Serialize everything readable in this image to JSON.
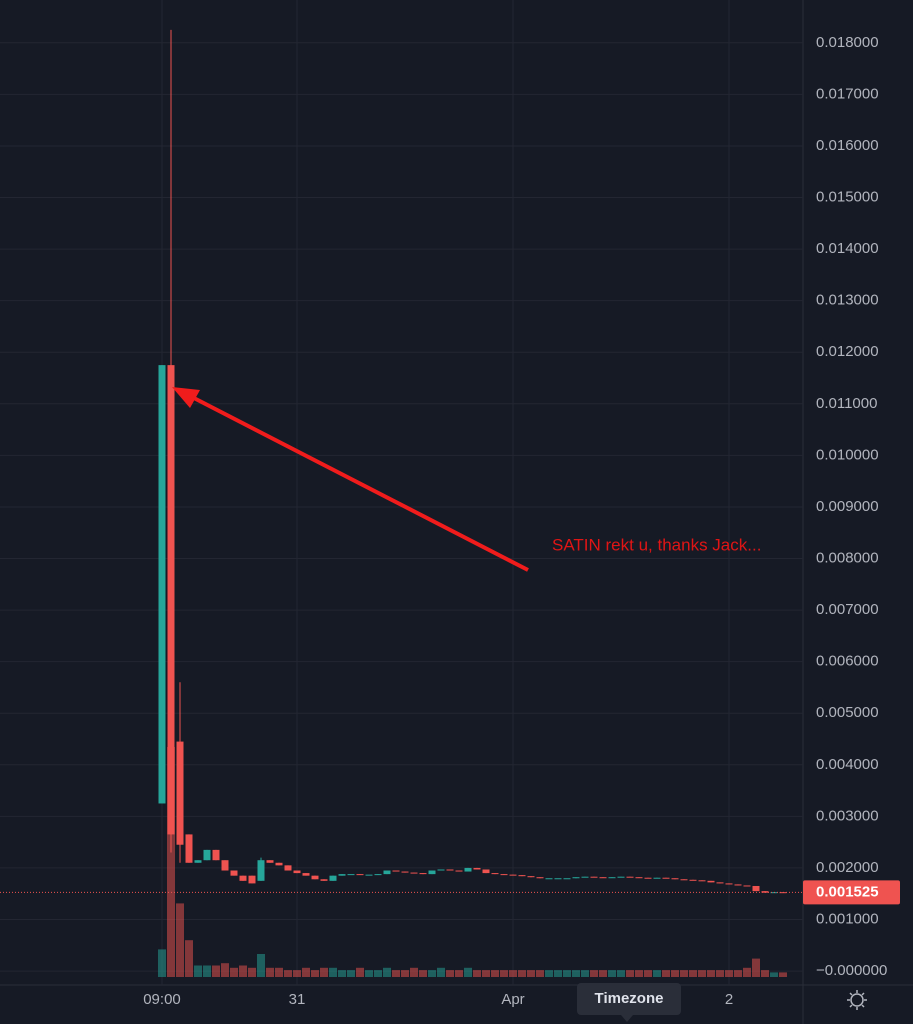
{
  "chart_data": {
    "type": "candlestick",
    "categories": [
      "09:00",
      null,
      null,
      null,
      null,
      null,
      null,
      null,
      null,
      null,
      null,
      null,
      null,
      null,
      null,
      "31",
      null,
      null,
      null,
      null,
      null,
      null,
      null,
      null,
      null,
      null,
      null,
      null,
      null,
      null,
      null,
      null,
      null,
      null,
      null,
      null,
      null,
      null,
      null,
      "Apr",
      null,
      null,
      null,
      null,
      null,
      null,
      null,
      null,
      null,
      null,
      null,
      null,
      null,
      null,
      null,
      null,
      null,
      null,
      null,
      null,
      null,
      null,
      null,
      "2",
      null,
      null,
      null,
      null,
      null,
      null
    ],
    "open": [
      0.00325,
      0.01175,
      0.00445,
      0.00265,
      0.0021,
      0.00215,
      0.00235,
      0.00215,
      0.00195,
      0.00185,
      0.00185,
      0.00175,
      0.00215,
      0.0021,
      0.00205,
      0.00195,
      0.0019,
      0.00185,
      0.00178,
      0.00175,
      0.00185,
      0.00188,
      0.00188,
      0.00187,
      0.00187,
      0.00188,
      0.00195,
      0.00193,
      0.00191,
      0.0019,
      0.00188,
      0.00195,
      0.00197,
      0.00195,
      0.00193,
      0.002,
      0.00197,
      0.0019,
      0.00188,
      0.00187,
      0.00186,
      0.00184,
      0.00182,
      0.0018,
      0.0018,
      0.0018,
      0.0018,
      0.00182,
      0.00183,
      0.00182,
      0.00181,
      0.00182,
      0.00183,
      0.00182,
      0.00181,
      0.0018,
      0.00181,
      0.0018,
      0.00178,
      0.00177,
      0.00176,
      0.00175,
      0.00172,
      0.0017,
      0.00168,
      0.00166,
      0.00165,
      0.00155,
      0.00152,
      0.00153
    ],
    "high": [
      0.01175,
      0.01825,
      0.0056,
      0.00265,
      0.00215,
      0.00235,
      0.00235,
      0.00215,
      0.00195,
      0.00185,
      0.00185,
      0.0022,
      0.00215,
      0.0021,
      0.00205,
      0.00195,
      0.0019,
      0.00185,
      0.00178,
      0.00185,
      0.00188,
      0.00188,
      0.00188,
      0.00187,
      0.00188,
      0.00195,
      0.00195,
      0.00193,
      0.00191,
      0.0019,
      0.00195,
      0.00197,
      0.00197,
      0.00195,
      0.002,
      0.002,
      0.00197,
      0.0019,
      0.00188,
      0.00187,
      0.00186,
      0.00184,
      0.00182,
      0.0018,
      0.0018,
      0.0018,
      0.00182,
      0.00183,
      0.00183,
      0.00182,
      0.00182,
      0.00183,
      0.00183,
      0.00182,
      0.00181,
      0.00181,
      0.00181,
      0.0018,
      0.00178,
      0.00177,
      0.00176,
      0.00175,
      0.00172,
      0.0017,
      0.00168,
      0.00166,
      0.00165,
      0.00155,
      0.00153,
      0.00153
    ],
    "low": [
      0.00325,
      0.0023,
      0.0021,
      0.0021,
      0.0021,
      0.00215,
      0.00215,
      0.00195,
      0.00185,
      0.00175,
      0.0017,
      0.00175,
      0.0021,
      0.00205,
      0.00195,
      0.0019,
      0.00185,
      0.00178,
      0.00175,
      0.00175,
      0.00185,
      0.00188,
      0.00187,
      0.00187,
      0.00187,
      0.00188,
      0.00193,
      0.00191,
      0.0019,
      0.00188,
      0.00188,
      0.00195,
      0.00195,
      0.00193,
      0.00193,
      0.00197,
      0.0019,
      0.00188,
      0.00187,
      0.00186,
      0.00184,
      0.00182,
      0.0018,
      0.0018,
      0.0018,
      0.0018,
      0.0018,
      0.00182,
      0.00182,
      0.00181,
      0.00181,
      0.00182,
      0.00182,
      0.00181,
      0.0018,
      0.0018,
      0.0018,
      0.00178,
      0.00177,
      0.00176,
      0.00175,
      0.00172,
      0.0017,
      0.00168,
      0.00166,
      0.00165,
      0.00155,
      0.00152,
      0.00152,
      0.001525
    ],
    "close": [
      0.01175,
      0.00265,
      0.00245,
      0.0021,
      0.00215,
      0.00235,
      0.00215,
      0.00195,
      0.00185,
      0.00175,
      0.0017,
      0.00215,
      0.0021,
      0.00205,
      0.00195,
      0.0019,
      0.00185,
      0.00178,
      0.00175,
      0.00185,
      0.00188,
      0.00188,
      0.00187,
      0.00187,
      0.00188,
      0.00195,
      0.00193,
      0.00191,
      0.0019,
      0.00188,
      0.00195,
      0.00197,
      0.00195,
      0.00193,
      0.002,
      0.00197,
      0.0019,
      0.00188,
      0.00187,
      0.00186,
      0.00184,
      0.00182,
      0.0018,
      0.0018,
      0.0018,
      0.0018,
      0.00182,
      0.00183,
      0.00182,
      0.00181,
      0.00182,
      0.00183,
      0.00182,
      0.00181,
      0.0018,
      0.00181,
      0.0018,
      0.00178,
      0.00177,
      0.00176,
      0.00175,
      0.00172,
      0.0017,
      0.00168,
      0.00166,
      0.00165,
      0.00155,
      0.00152,
      0.00153,
      0.001525
    ],
    "volume": [
      12,
      100,
      32,
      16,
      5,
      5,
      5,
      6,
      4,
      5,
      4,
      10,
      4,
      4,
      3,
      3,
      4,
      3,
      4,
      4,
      3,
      3,
      4,
      3,
      3,
      4,
      3,
      3,
      4,
      3,
      3,
      4,
      3,
      3,
      4,
      3,
      3,
      3,
      3,
      3,
      3,
      3,
      3,
      3,
      3,
      3,
      3,
      3,
      3,
      3,
      3,
      3,
      3,
      3,
      3,
      3,
      3,
      3,
      3,
      3,
      3,
      3,
      3,
      3,
      3,
      4,
      8,
      3,
      2,
      2
    ],
    "volume_ylim": [
      0,
      100
    ],
    "up_color": "#26a69a",
    "down_color": "#ef5350",
    "ylim": [
      -0.00027,
      0.01883
    ],
    "yticks": [
      {
        "value": 0.018,
        "label": "0.018000"
      },
      {
        "value": 0.017,
        "label": "0.017000"
      },
      {
        "value": 0.016,
        "label": "0.016000"
      },
      {
        "value": 0.015,
        "label": "0.015000"
      },
      {
        "value": 0.014,
        "label": "0.014000"
      },
      {
        "value": 0.013,
        "label": "0.013000"
      },
      {
        "value": 0.012,
        "label": "0.012000"
      },
      {
        "value": 0.011,
        "label": "0.011000"
      },
      {
        "value": 0.01,
        "label": "0.010000"
      },
      {
        "value": 0.009,
        "label": "0.009000"
      },
      {
        "value": 0.008,
        "label": "0.008000"
      },
      {
        "value": 0.007,
        "label": "0.007000"
      },
      {
        "value": 0.006,
        "label": "0.006000"
      },
      {
        "value": 0.005,
        "label": "0.005000"
      },
      {
        "value": 0.004,
        "label": "0.004000"
      },
      {
        "value": 0.003,
        "label": "0.003000"
      },
      {
        "value": 0.002,
        "label": "0.002000"
      },
      {
        "value": 0.001,
        "label": "0.001000"
      },
      {
        "value": 0,
        "label": "−0.000000"
      }
    ],
    "grid": true,
    "last_price": {
      "value": 0.001525,
      "label": "0.001525"
    },
    "annotation": "SATIN rekt u, thanks Jack..."
  },
  "toolbar": {
    "timezone": "Timezone"
  }
}
